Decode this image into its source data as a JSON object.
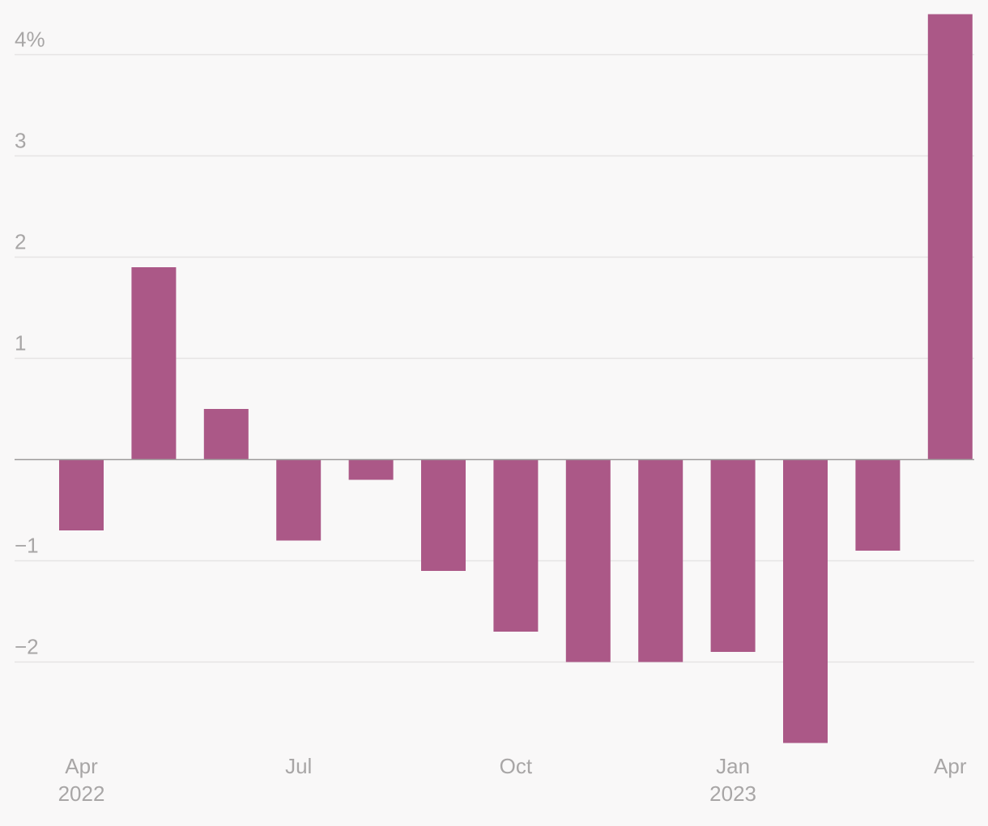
{
  "chart_data": {
    "type": "bar",
    "title": "",
    "xlabel": "",
    "ylabel": "",
    "categories": [
      "2022-04",
      "2022-05",
      "2022-06",
      "2022-07",
      "2022-08",
      "2022-09",
      "2022-10",
      "2022-11",
      "2022-12",
      "2023-01",
      "2023-02",
      "2023-03",
      "2023-04"
    ],
    "values": [
      -0.7,
      1.9,
      0.5,
      -0.8,
      -0.2,
      -1.1,
      -1.7,
      -2.0,
      -2.0,
      -1.9,
      -2.8,
      -0.9,
      4.4
    ],
    "ylim": [
      -2.9,
      4.4
    ],
    "yticks": [
      {
        "value": 4,
        "label": "4%"
      },
      {
        "value": 3,
        "label": "3"
      },
      {
        "value": 2,
        "label": "2"
      },
      {
        "value": 1,
        "label": "1"
      },
      {
        "value": -1,
        "label": "−1"
      },
      {
        "value": -2,
        "label": "−2"
      }
    ],
    "xticks": [
      {
        "index": 0,
        "label": "Apr",
        "sublabel": "2022"
      },
      {
        "index": 3,
        "label": "Jul",
        "sublabel": ""
      },
      {
        "index": 6,
        "label": "Oct",
        "sublabel": ""
      },
      {
        "index": 9,
        "label": "Jan",
        "sublabel": "2023"
      },
      {
        "index": 12,
        "label": "Apr",
        "sublabel": ""
      }
    ],
    "grid": true,
    "legend": "none",
    "colors": {
      "bar": "#ab5887",
      "grid": "#e6e4e4",
      "zero_line": "#9d9b9b",
      "tick_text": "#a8a6a6",
      "background": "#f9f8f8"
    }
  }
}
